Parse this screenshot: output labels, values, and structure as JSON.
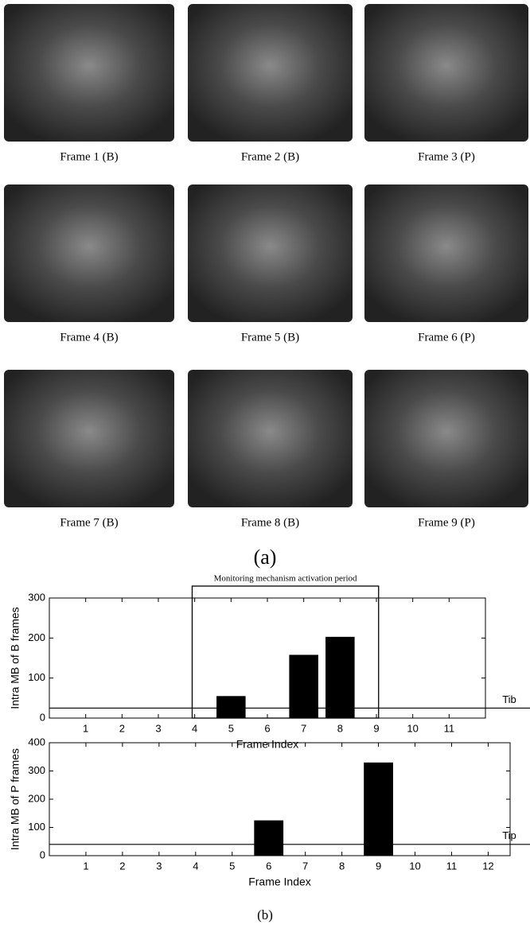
{
  "frames": [
    "Frame 1 (B)",
    "Frame 2 (B)",
    "Frame 3 (P)",
    "Frame 4 (B)",
    "Frame 5 (B)",
    "Frame 6 (P)",
    "Frame 7 (B)",
    "Frame 8 (B)",
    "Frame 9 (P)"
  ],
  "panel_a_label": "(a)",
  "chart_data": [
    {
      "type": "bar",
      "annotation": "Monitoring mechanism activation period",
      "annotation_span": [
        3.93,
        9.06
      ],
      "ylabel": "Intra MB of B frames",
      "xlabel": "Frame Index",
      "x": [
        5,
        7,
        8
      ],
      "series": [
        {
          "color": "#000000",
          "values": [
            55,
            158,
            203
          ]
        }
      ],
      "xlim": [
        0,
        12
      ],
      "xticks": [
        1,
        2,
        3,
        4,
        5,
        6,
        7,
        8,
        9,
        10,
        11
      ],
      "ylim": [
        0,
        300
      ],
      "yticks": [
        0,
        100,
        200,
        300
      ],
      "threshold": {
        "label": "Tib",
        "value": 25
      }
    },
    {
      "type": "bar",
      "ylabel": "Intra MB of P frames",
      "xlabel": "Frame Index",
      "x": [
        6,
        9
      ],
      "series": [
        {
          "color": "#000000",
          "values": [
            125,
            330
          ]
        }
      ],
      "xlim": [
        0,
        12.6
      ],
      "xticks": [
        1,
        2,
        3,
        4,
        5,
        6,
        7,
        8,
        9,
        10,
        11,
        12
      ],
      "ylim": [
        0,
        400
      ],
      "yticks": [
        0,
        100,
        200,
        300,
        400
      ],
      "threshold": {
        "label": "Tip",
        "value": 40
      }
    }
  ],
  "panel_b_label": "(b)"
}
